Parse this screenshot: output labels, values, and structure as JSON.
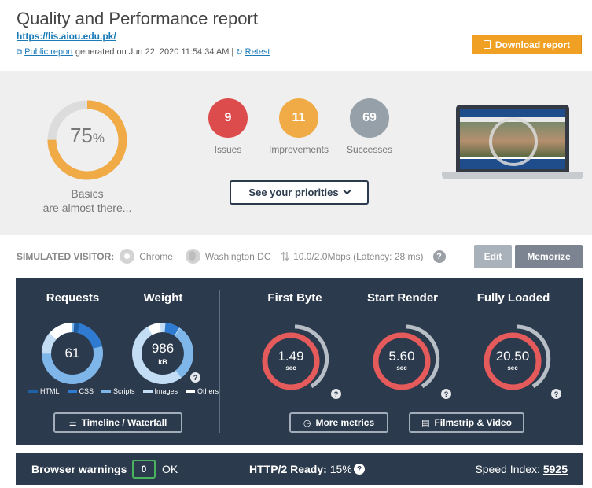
{
  "header": {
    "title": "Quality and Performance report",
    "url": "https://lis.aiou.edu.pk/",
    "public_report_label": "Public report",
    "generated_text": "generated on Jun 22, 2020 11:54:34 AM",
    "separator": "|",
    "retest_label": "Retest",
    "download_label": "Download report"
  },
  "summary": {
    "score": "75",
    "score_unit": "%",
    "score_fraction": 0.75,
    "basics_line1": "Basics",
    "basics_line2": "are almost there...",
    "badges": [
      {
        "value": "9",
        "label": "Issues",
        "color": "#dc4c4c"
      },
      {
        "value": "11",
        "label": "Improvements",
        "color": "#f0ab47"
      },
      {
        "value": "69",
        "label": "Successes",
        "color": "#96a0a8"
      }
    ],
    "priorities_label": "See your priorities"
  },
  "visitor": {
    "label": "SIMULATED VISITOR:",
    "browser": "Chrome",
    "location": "Washington DC",
    "connection": "10.0/2.0Mbps (Latency: 28 ms)",
    "help": "?",
    "edit_label": "Edit",
    "memorize_label": "Memorize"
  },
  "metrics": {
    "requests": {
      "title": "Requests",
      "value": "61"
    },
    "weight": {
      "title": "Weight",
      "value": "986",
      "unit": "kB",
      "help": "?"
    },
    "legend": [
      {
        "label": "HTML",
        "color": "#1f5fa6"
      },
      {
        "label": "CSS",
        "color": "#2e7bd1"
      },
      {
        "label": "Scripts",
        "color": "#7fb6ea"
      },
      {
        "label": "Images",
        "color": "#c3ddf4"
      },
      {
        "label": "Others",
        "color": "#ffffff"
      }
    ],
    "timers": [
      {
        "title": "First Byte",
        "value": "1.49",
        "unit": "sec",
        "help": "?"
      },
      {
        "title": "Start Render",
        "value": "5.60",
        "unit": "sec",
        "help": "?"
      },
      {
        "title": "Fully Loaded",
        "value": "20.50",
        "unit": "sec",
        "help": "?"
      }
    ],
    "timeline_label": "Timeline / Waterfall",
    "more_metrics_label": "More metrics",
    "filmstrip_label": "Filmstrip & Video"
  },
  "bottom": {
    "warnings_label": "Browser warnings",
    "warnings_count": "0",
    "warnings_status": "OK",
    "http2_label": "HTTP/2 Ready:",
    "http2_value": "15%",
    "http2_help": "?",
    "speed_index_label": "Speed Index:",
    "speed_index_value": "5925"
  }
}
